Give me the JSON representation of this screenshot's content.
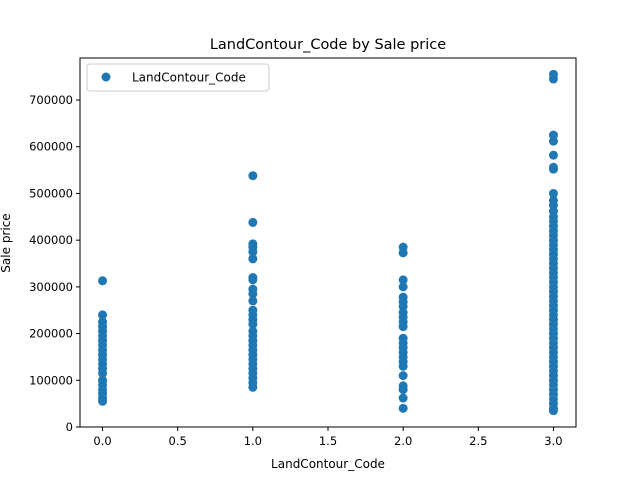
{
  "chart_data": {
    "type": "scatter",
    "title": "LandContour_Code by Sale price",
    "xlabel": "LandContour_Code",
    "ylabel": "Sale price",
    "xlim": [
      -0.15,
      3.15
    ],
    "ylim": [
      0,
      790000
    ],
    "xticks": [
      "0.0",
      "0.5",
      "1.0",
      "1.5",
      "2.0",
      "2.5",
      "3.0"
    ],
    "yticks": [
      "0",
      "100000",
      "200000",
      "300000",
      "400000",
      "500000",
      "600000",
      "700000"
    ],
    "grid": false,
    "legend": {
      "placement": "top-left",
      "entries": [
        "LandContour_Code"
      ]
    },
    "marker_color": "#1f77b4",
    "series": [
      {
        "name": "LandContour_Code",
        "points": [
          [
            0,
            313000
          ],
          [
            0,
            240000
          ],
          [
            0,
            225000
          ],
          [
            0,
            215000
          ],
          [
            0,
            205000
          ],
          [
            0,
            195000
          ],
          [
            0,
            185000
          ],
          [
            0,
            175000
          ],
          [
            0,
            165000
          ],
          [
            0,
            155000
          ],
          [
            0,
            145000
          ],
          [
            0,
            135000
          ],
          [
            0,
            125000
          ],
          [
            0,
            115000
          ],
          [
            0,
            100000
          ],
          [
            0,
            90000
          ],
          [
            0,
            80000
          ],
          [
            0,
            72000
          ],
          [
            0,
            62000
          ],
          [
            0,
            55000
          ],
          [
            1,
            538000
          ],
          [
            1,
            438000
          ],
          [
            1,
            392000
          ],
          [
            1,
            385000
          ],
          [
            1,
            375000
          ],
          [
            1,
            360000
          ],
          [
            1,
            320000
          ],
          [
            1,
            315000
          ],
          [
            1,
            295000
          ],
          [
            1,
            285000
          ],
          [
            1,
            270000
          ],
          [
            1,
            250000
          ],
          [
            1,
            240000
          ],
          [
            1,
            230000
          ],
          [
            1,
            220000
          ],
          [
            1,
            205000
          ],
          [
            1,
            195000
          ],
          [
            1,
            185000
          ],
          [
            1,
            175000
          ],
          [
            1,
            165000
          ],
          [
            1,
            155000
          ],
          [
            1,
            145000
          ],
          [
            1,
            135000
          ],
          [
            1,
            125000
          ],
          [
            1,
            115000
          ],
          [
            1,
            105000
          ],
          [
            1,
            95000
          ],
          [
            1,
            85000
          ],
          [
            2,
            385000
          ],
          [
            2,
            373000
          ],
          [
            2,
            315000
          ],
          [
            2,
            300000
          ],
          [
            2,
            278000
          ],
          [
            2,
            268000
          ],
          [
            2,
            258000
          ],
          [
            2,
            245000
          ],
          [
            2,
            235000
          ],
          [
            2,
            225000
          ],
          [
            2,
            215000
          ],
          [
            2,
            190000
          ],
          [
            2,
            180000
          ],
          [
            2,
            170000
          ],
          [
            2,
            160000
          ],
          [
            2,
            150000
          ],
          [
            2,
            140000
          ],
          [
            2,
            130000
          ],
          [
            2,
            110000
          ],
          [
            2,
            88000
          ],
          [
            2,
            80000
          ],
          [
            2,
            62000
          ],
          [
            2,
            40000
          ],
          [
            3,
            755000
          ],
          [
            3,
            745000
          ],
          [
            3,
            625000
          ],
          [
            3,
            612000
          ],
          [
            3,
            582000
          ],
          [
            3,
            556000
          ],
          [
            3,
            552000
          ],
          [
            3,
            500000
          ],
          [
            3,
            485000
          ],
          [
            3,
            475000
          ],
          [
            3,
            462000
          ],
          [
            3,
            450000
          ],
          [
            3,
            440000
          ],
          [
            3,
            430000
          ],
          [
            3,
            420000
          ],
          [
            3,
            410000
          ],
          [
            3,
            400000
          ],
          [
            3,
            390000
          ],
          [
            3,
            380000
          ],
          [
            3,
            370000
          ],
          [
            3,
            360000
          ],
          [
            3,
            350000
          ],
          [
            3,
            340000
          ],
          [
            3,
            330000
          ],
          [
            3,
            320000
          ],
          [
            3,
            310000
          ],
          [
            3,
            300000
          ],
          [
            3,
            290000
          ],
          [
            3,
            280000
          ],
          [
            3,
            270000
          ],
          [
            3,
            260000
          ],
          [
            3,
            250000
          ],
          [
            3,
            240000
          ],
          [
            3,
            230000
          ],
          [
            3,
            220000
          ],
          [
            3,
            210000
          ],
          [
            3,
            200000
          ],
          [
            3,
            190000
          ],
          [
            3,
            180000
          ],
          [
            3,
            170000
          ],
          [
            3,
            160000
          ],
          [
            3,
            150000
          ],
          [
            3,
            140000
          ],
          [
            3,
            130000
          ],
          [
            3,
            120000
          ],
          [
            3,
            110000
          ],
          [
            3,
            100000
          ],
          [
            3,
            90000
          ],
          [
            3,
            80000
          ],
          [
            3,
            70000
          ],
          [
            3,
            60000
          ],
          [
            3,
            50000
          ],
          [
            3,
            40000
          ],
          [
            3,
            35000
          ]
        ]
      }
    ]
  }
}
